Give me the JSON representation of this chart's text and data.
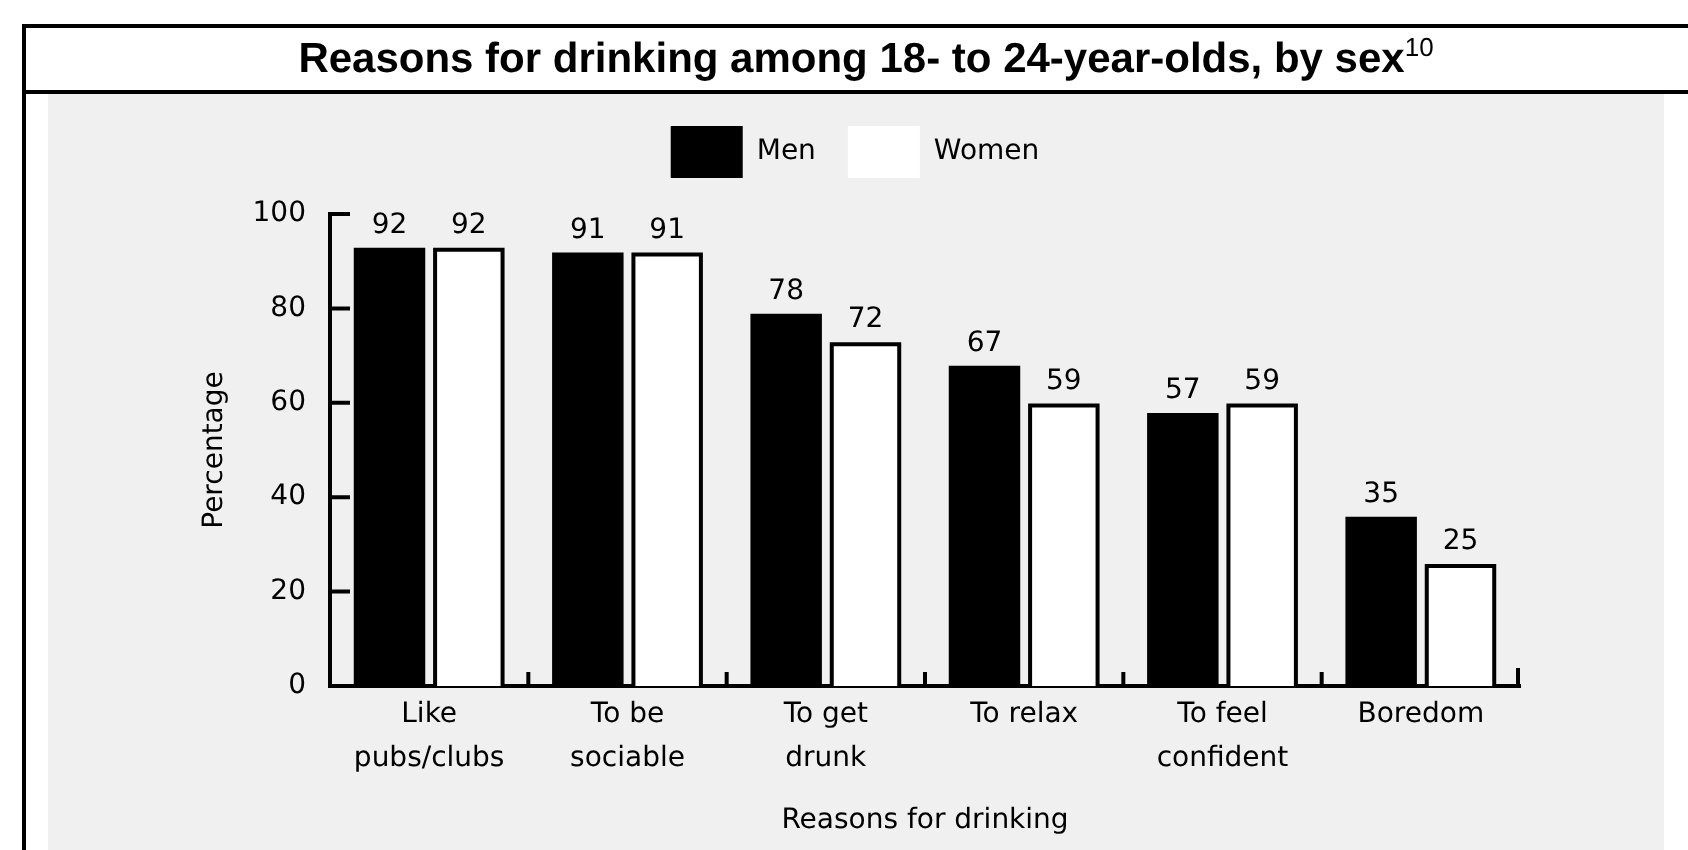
{
  "chart_data": {
    "type": "bar",
    "title": "Reasons for drinking among 18- to 24-year-olds, by sex$^{10}$",
    "xlabel": "Reasons for drinking",
    "ylabel": "Percentage",
    "categories": [
      "Like pubs/clubs",
      "To be sociable",
      "To get drunk",
      "To relax",
      "To feel confident",
      "Boredom"
    ],
    "series": [
      {
        "name": "Men",
        "color": "#000000",
        "values": [
          92,
          91,
          78,
          67,
          57,
          35
        ]
      },
      {
        "name": "Women",
        "color": "#ffffff",
        "values": [
          92,
          91,
          72,
          59,
          59,
          25
        ]
      }
    ],
    "ylim": [
      0,
      100
    ],
    "yticks": [
      0,
      20,
      40,
      60,
      80,
      100
    ],
    "grid": false,
    "legend": "top",
    "data_labels": true
  }
}
